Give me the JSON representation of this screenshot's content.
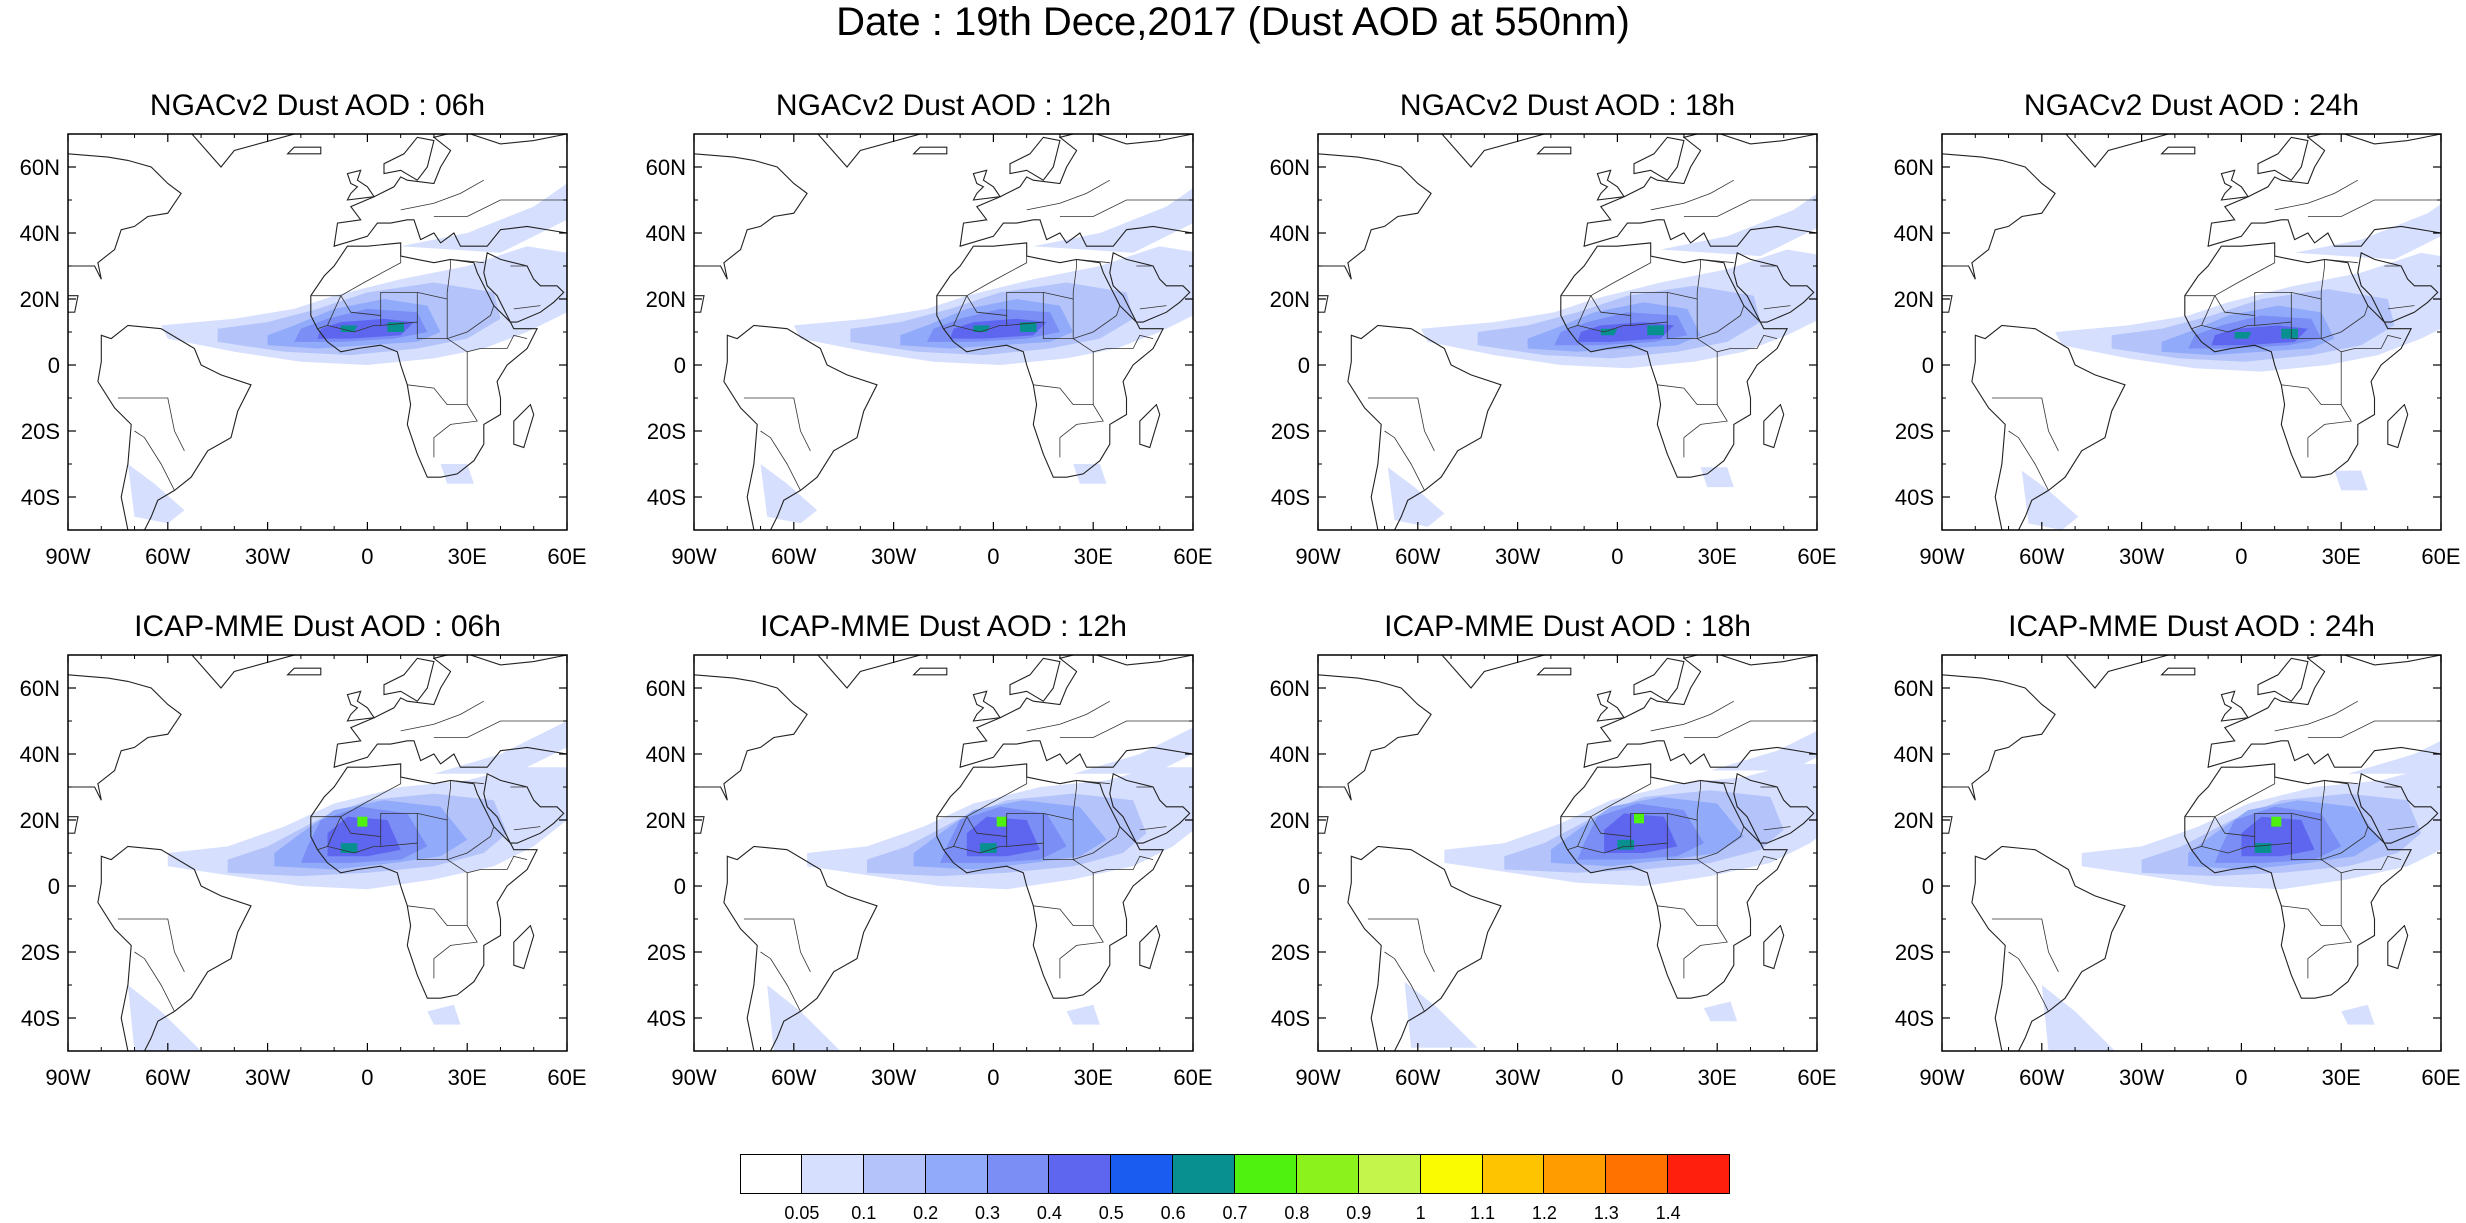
{
  "figure": {
    "title": "Date : 19th Dece,2017 (Dust AOD at 550nm)"
  },
  "axes": {
    "lon_labels": [
      "90W",
      "60W",
      "30W",
      "0",
      "30E",
      "60E"
    ],
    "lat_labels": [
      "60N",
      "40N",
      "20N",
      "0",
      "20S",
      "40S"
    ],
    "lon_range": [
      -90,
      60
    ],
    "lat_range": [
      -50,
      70
    ]
  },
  "panels": [
    {
      "title": "NGACv2 Dust AOD : 06h"
    },
    {
      "title": "NGACv2 Dust AOD : 12h"
    },
    {
      "title": "NGACv2 Dust AOD : 18h"
    },
    {
      "title": "NGACv2 Dust AOD : 24h"
    },
    {
      "title": "ICAP-MME Dust AOD : 06h"
    },
    {
      "title": "ICAP-MME Dust AOD : 12h"
    },
    {
      "title": "ICAP-MME Dust AOD : 18h"
    },
    {
      "title": "ICAP-MME Dust AOD : 24h"
    }
  ],
  "colorbar": {
    "labels": [
      "0.05",
      "0.1",
      "0.2",
      "0.3",
      "0.4",
      "0.5",
      "0.6",
      "0.7",
      "0.8",
      "0.9",
      "1",
      "1.1",
      "1.2",
      "1.3",
      "1.4"
    ],
    "colors": [
      "#ffffff",
      "#d6dffd",
      "#b4c4fb",
      "#92aafa",
      "#7a8ef5",
      "#5e66f0",
      "#1a5cf0",
      "#088f8f",
      "#4ef20e",
      "#8cf21c",
      "#c3f54b",
      "#fafb00",
      "#ffc400",
      "#ff9c00",
      "#ff7200",
      "#ff1f0c"
    ]
  }
}
